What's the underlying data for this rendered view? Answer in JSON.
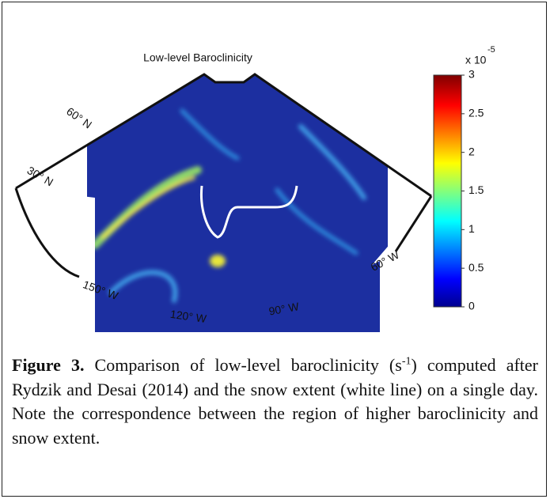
{
  "figure": {
    "title": "Low-level Baroclinicity",
    "lat_labels": [
      "60° N",
      "30° N"
    ],
    "lon_labels": [
      "150° W",
      "120° W",
      "90° W",
      "60° W"
    ],
    "colorbar": {
      "multiplier": "x 10",
      "exponent": "-5",
      "lim": [
        0,
        3
      ],
      "ticks": [
        0,
        0.5,
        1,
        1.5,
        2,
        2.5,
        3
      ]
    }
  },
  "caption": {
    "label": "Figure 3.",
    "text_before": "Comparison of low-level baroclinicity (s",
    "superscript": "-1",
    "text_after": ") computed after Rydzik and Desai (2014) and the snow extent (white line) on a single day. Note the correspondence between the region of higher baroclinicity and snow extent."
  }
}
